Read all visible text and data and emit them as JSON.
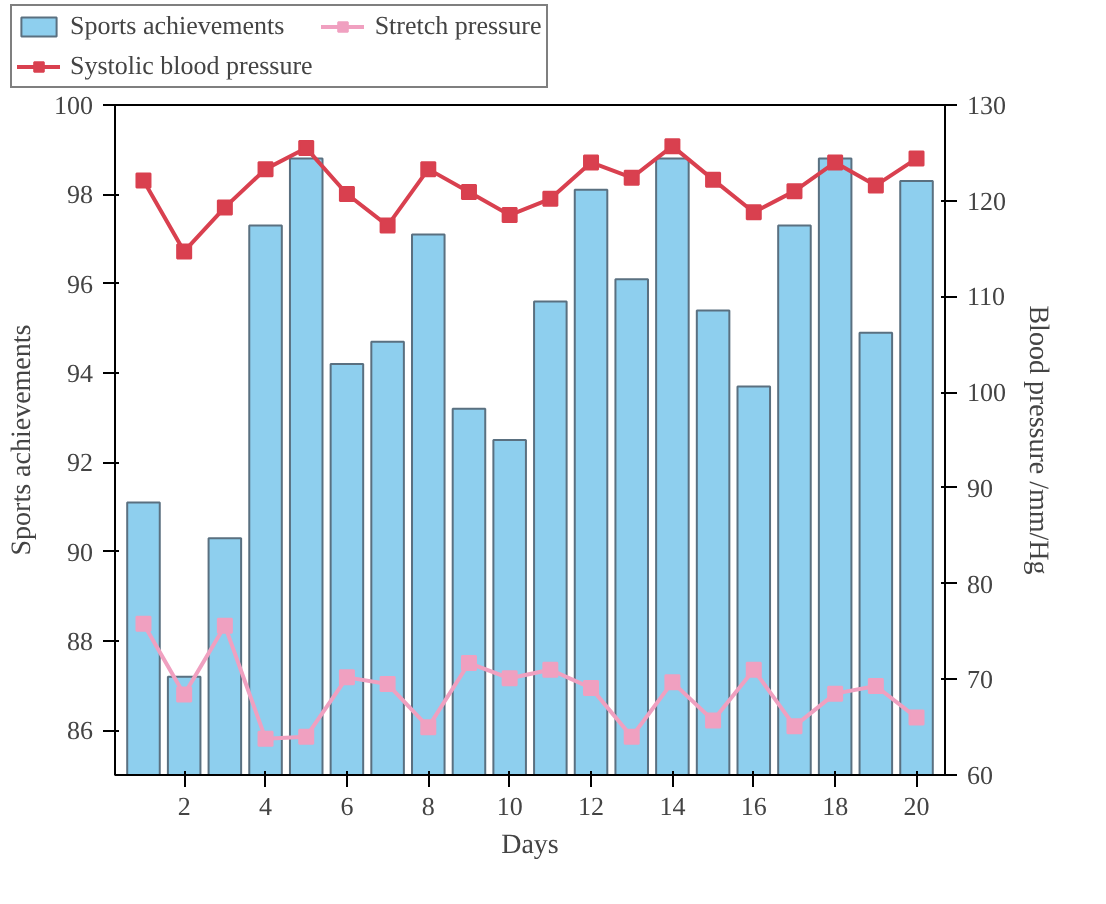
{
  "chart_data": {
    "type": "bar",
    "xlabel": "Days",
    "ylabel": "Sports achievements",
    "y2label": "Blood pressure /mm/Hg",
    "x": [
      1,
      2,
      3,
      4,
      5,
      6,
      7,
      8,
      9,
      10,
      11,
      12,
      13,
      14,
      15,
      16,
      17,
      18,
      19,
      20
    ],
    "xlim": [
      0.3,
      20.7
    ],
    "xticks": [
      2,
      4,
      6,
      8,
      10,
      12,
      14,
      16,
      18,
      20
    ],
    "ylim": [
      85,
      100
    ],
    "yticks": [
      86,
      88,
      90,
      92,
      94,
      96,
      98,
      100
    ],
    "y2lim": [
      60,
      130
    ],
    "y2ticks": [
      60,
      70,
      80,
      90,
      100,
      110,
      120,
      130
    ],
    "series": [
      {
        "name": "Sports achievements",
        "color": "#8ecfee",
        "values": [
          91.1,
          87.2,
          90.3,
          97.3,
          98.8,
          94.2,
          94.7,
          97.1,
          93.2,
          92.5,
          95.6,
          98.1,
          96.1,
          98.8,
          95.4,
          93.7,
          97.3,
          98.8,
          94.9,
          98.3
        ]
      },
      {
        "name": "Stretch pressure",
        "type": "line",
        "axis": "y2",
        "color": "#f0a0c0",
        "marker": "square",
        "values": [
          75.8,
          68.4,
          75.6,
          63.8,
          64.0,
          70.2,
          69.5,
          65.0,
          71.7,
          70.1,
          71.0,
          69.1,
          64.0,
          69.7,
          65.7,
          71.0,
          65.1,
          68.5,
          69.3,
          66.0
        ]
      },
      {
        "name": "Systolic blood pressure",
        "type": "line",
        "axis": "y2",
        "color": "#d9404f",
        "marker": "square",
        "values": [
          122.1,
          114.7,
          119.3,
          123.3,
          125.5,
          120.7,
          117.4,
          123.3,
          120.9,
          118.5,
          120.2,
          124.0,
          122.4,
          125.7,
          122.2,
          118.8,
          121.0,
          124.0,
          121.6,
          124.4
        ]
      }
    ],
    "legend": "top",
    "grid": false
  }
}
